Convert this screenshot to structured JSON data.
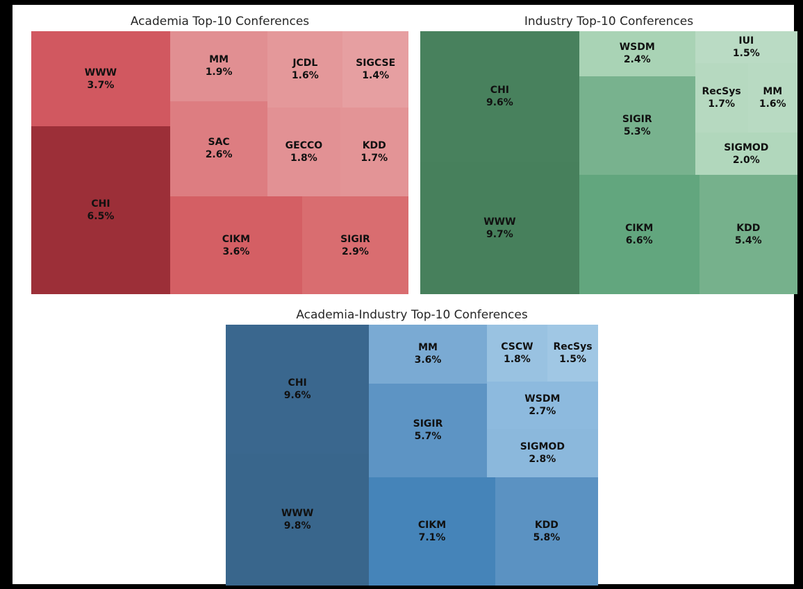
{
  "page": {
    "background_color": "#000000",
    "canvas_color": "#ffffff",
    "title_color": "#262626",
    "label_color": "#111111"
  },
  "chart_data": [
    {
      "type": "treemap",
      "title": "Academia Top-10 Conferences",
      "unit": "%",
      "legend": "none",
      "categories": [
        "CHI",
        "WWW",
        "CIKM",
        "SIGIR",
        "SAC",
        "MM",
        "GECCO",
        "KDD",
        "JCDL",
        "SIGCSE"
      ],
      "values": [
        6.5,
        3.7,
        3.6,
        2.9,
        2.6,
        1.9,
        1.8,
        1.7,
        1.6,
        1.4
      ],
      "cells": [
        {
          "label": "WWW",
          "value": 3.7,
          "pct_label": "3.7%",
          "color": "#d15860",
          "rect": {
            "x": 0.0,
            "y": 0.0,
            "w": 0.36823,
            "h": 0.36275
          }
        },
        {
          "label": "CHI",
          "value": 6.5,
          "pct_label": "6.5%",
          "color": "#9c2f38",
          "rect": {
            "x": 0.0,
            "y": 0.36275,
            "w": 0.36823,
            "h": 0.63725
          }
        },
        {
          "label": "MM",
          "value": 1.9,
          "pct_label": "1.9%",
          "color": "#e18f92",
          "rect": {
            "x": 0.36823,
            "y": 0.0,
            "w": 0.25845,
            "h": 0.26539
          }
        },
        {
          "label": "SAC",
          "value": 2.6,
          "pct_label": "2.6%",
          "color": "#dd7d81",
          "rect": {
            "x": 0.36823,
            "y": 0.26539,
            "w": 0.25845,
            "h": 0.36318
          }
        },
        {
          "label": "JCDL",
          "value": 1.6,
          "pct_label": "1.6%",
          "color": "#e4989a",
          "rect": {
            "x": 0.62668,
            "y": 0.0,
            "w": 0.1991,
            "h": 0.29011
          }
        },
        {
          "label": "SIGCSE",
          "value": 1.4,
          "pct_label": "1.4%",
          "color": "#e69fa1",
          "rect": {
            "x": 0.82578,
            "y": 0.0,
            "w": 0.17422,
            "h": 0.29011
          }
        },
        {
          "label": "GECCO",
          "value": 1.8,
          "pct_label": "1.8%",
          "color": "#e29194",
          "rect": {
            "x": 0.62668,
            "y": 0.29011,
            "w": 0.192,
            "h": 0.33846
          }
        },
        {
          "label": "KDD",
          "value": 1.7,
          "pct_label": "1.7%",
          "color": "#e39496",
          "rect": {
            "x": 0.81868,
            "y": 0.29011,
            "w": 0.18132,
            "h": 0.33846
          }
        },
        {
          "label": "CIKM",
          "value": 3.6,
          "pct_label": "3.6%",
          "color": "#d45f64",
          "rect": {
            "x": 0.36823,
            "y": 0.62857,
            "w": 0.3499,
            "h": 0.37143
          }
        },
        {
          "label": "SIGIR",
          "value": 2.9,
          "pct_label": "2.9%",
          "color": "#d96d70",
          "rect": {
            "x": 0.71813,
            "y": 0.62857,
            "w": 0.28187,
            "h": 0.37143
          }
        }
      ]
    },
    {
      "type": "treemap",
      "title": "Industry Top-10 Conferences",
      "unit": "%",
      "legend": "none",
      "categories": [
        "WWW",
        "CHI",
        "CIKM",
        "KDD",
        "SIGIR",
        "WSDM",
        "SIGMOD",
        "RecSys",
        "MM",
        "IUI"
      ],
      "values": [
        9.7,
        9.6,
        6.6,
        5.4,
        5.3,
        2.4,
        2.0,
        1.7,
        1.6,
        1.5
      ],
      "cells": [
        {
          "label": "CHI",
          "value": 9.6,
          "pct_label": "9.6%",
          "color": "#48815d",
          "rect": {
            "x": 0.0,
            "y": 0.0,
            "w": 0.4214,
            "h": 0.49741
          }
        },
        {
          "label": "WWW",
          "value": 9.7,
          "pct_label": "9.7%",
          "color": "#47805c",
          "rect": {
            "x": 0.0,
            "y": 0.49741,
            "w": 0.4214,
            "h": 0.50259
          }
        },
        {
          "label": "WSDM",
          "value": 2.4,
          "pct_label": "2.4%",
          "color": "#a9d3b5",
          "rect": {
            "x": 0.4214,
            "y": 0.0,
            "w": 0.30726,
            "h": 0.17054
          }
        },
        {
          "label": "SIGIR",
          "value": 5.3,
          "pct_label": "5.3%",
          "color": "#78b28e",
          "rect": {
            "x": 0.4214,
            "y": 0.17054,
            "w": 0.30726,
            "h": 0.37663
          }
        },
        {
          "label": "IUI",
          "value": 1.5,
          "pct_label": "1.5%",
          "color": "#badbc4",
          "rect": {
            "x": 0.72866,
            "y": 0.0,
            "w": 0.27134,
            "h": 0.12069
          }
        },
        {
          "label": "RecSys",
          "value": 1.7,
          "pct_label": "1.7%",
          "color": "#b6d9c0",
          "rect": {
            "x": 0.72866,
            "y": 0.12069,
            "w": 0.13978,
            "h": 0.26554
          }
        },
        {
          "label": "MM",
          "value": 1.6,
          "pct_label": "1.6%",
          "color": "#b8dac2",
          "rect": {
            "x": 0.86844,
            "y": 0.12069,
            "w": 0.13156,
            "h": 0.26554
          }
        },
        {
          "label": "SIGMOD",
          "value": 2.0,
          "pct_label": "2.0%",
          "color": "#b1d7bc",
          "rect": {
            "x": 0.72866,
            "y": 0.38623,
            "w": 0.27134,
            "h": 0.16094
          }
        },
        {
          "label": "CIKM",
          "value": 6.6,
          "pct_label": "6.6%",
          "color": "#62a67e",
          "rect": {
            "x": 0.4214,
            "y": 0.54717,
            "w": 0.31823,
            "h": 0.45283
          }
        },
        {
          "label": "KDD",
          "value": 5.4,
          "pct_label": "5.4%",
          "color": "#76b18c",
          "rect": {
            "x": 0.73963,
            "y": 0.54717,
            "w": 0.26037,
            "h": 0.45283
          }
        }
      ]
    },
    {
      "type": "treemap",
      "title": "Academia-Industry Top-10 Conferences",
      "unit": "%",
      "legend": "none",
      "categories": [
        "WWW",
        "CHI",
        "CIKM",
        "KDD",
        "SIGIR",
        "MM",
        "SIGMOD",
        "WSDM",
        "CSCW",
        "RecSys"
      ],
      "values": [
        9.8,
        9.6,
        7.1,
        5.8,
        5.7,
        3.6,
        2.8,
        2.7,
        1.8,
        1.5
      ],
      "cells": [
        {
          "label": "CHI",
          "value": 9.6,
          "pct_label": "9.6%",
          "color": "#3a678e",
          "rect": {
            "x": 0.0,
            "y": 0.0,
            "w": 0.38492,
            "h": 0.49485
          }
        },
        {
          "label": "WWW",
          "value": 9.8,
          "pct_label": "9.8%",
          "color": "#39668c",
          "rect": {
            "x": 0.0,
            "y": 0.49485,
            "w": 0.38492,
            "h": 0.50515
          }
        },
        {
          "label": "MM",
          "value": 3.6,
          "pct_label": "3.6%",
          "color": "#7aaad3",
          "rect": {
            "x": 0.38492,
            "y": 0.0,
            "w": 0.31602,
            "h": 0.22602
          }
        },
        {
          "label": "SIGIR",
          "value": 5.7,
          "pct_label": "5.7%",
          "color": "#5d94c4",
          "rect": {
            "x": 0.38492,
            "y": 0.22602,
            "w": 0.31602,
            "h": 0.35785
          }
        },
        {
          "label": "CSCW",
          "value": 1.8,
          "pct_label": "1.8%",
          "color": "#99c2e1",
          "rect": {
            "x": 0.70094,
            "y": 0.0,
            "w": 0.16312,
            "h": 0.21895
          }
        },
        {
          "label": "RecSys",
          "value": 1.5,
          "pct_label": "1.5%",
          "color": "#a0c7e4",
          "rect": {
            "x": 0.86406,
            "y": 0.0,
            "w": 0.13594,
            "h": 0.21895
          }
        },
        {
          "label": "WSDM",
          "value": 2.7,
          "pct_label": "2.7%",
          "color": "#8dbade",
          "rect": {
            "x": 0.70094,
            "y": 0.21895,
            "w": 0.29906,
            "h": 0.17915
          }
        },
        {
          "label": "SIGMOD",
          "value": 2.8,
          "pct_label": "2.8%",
          "color": "#8bb8dc",
          "rect": {
            "x": 0.70094,
            "y": 0.3981,
            "w": 0.29906,
            "h": 0.18578
          }
        },
        {
          "label": "CIKM",
          "value": 7.1,
          "pct_label": "7.1%",
          "color": "#4584b9",
          "rect": {
            "x": 0.38492,
            "y": 0.58387,
            "w": 0.33854,
            "h": 0.41613
          }
        },
        {
          "label": "KDD",
          "value": 5.8,
          "pct_label": "5.8%",
          "color": "#5b92c2",
          "rect": {
            "x": 0.72346,
            "y": 0.58387,
            "w": 0.27654,
            "h": 0.41613
          }
        }
      ]
    }
  ]
}
